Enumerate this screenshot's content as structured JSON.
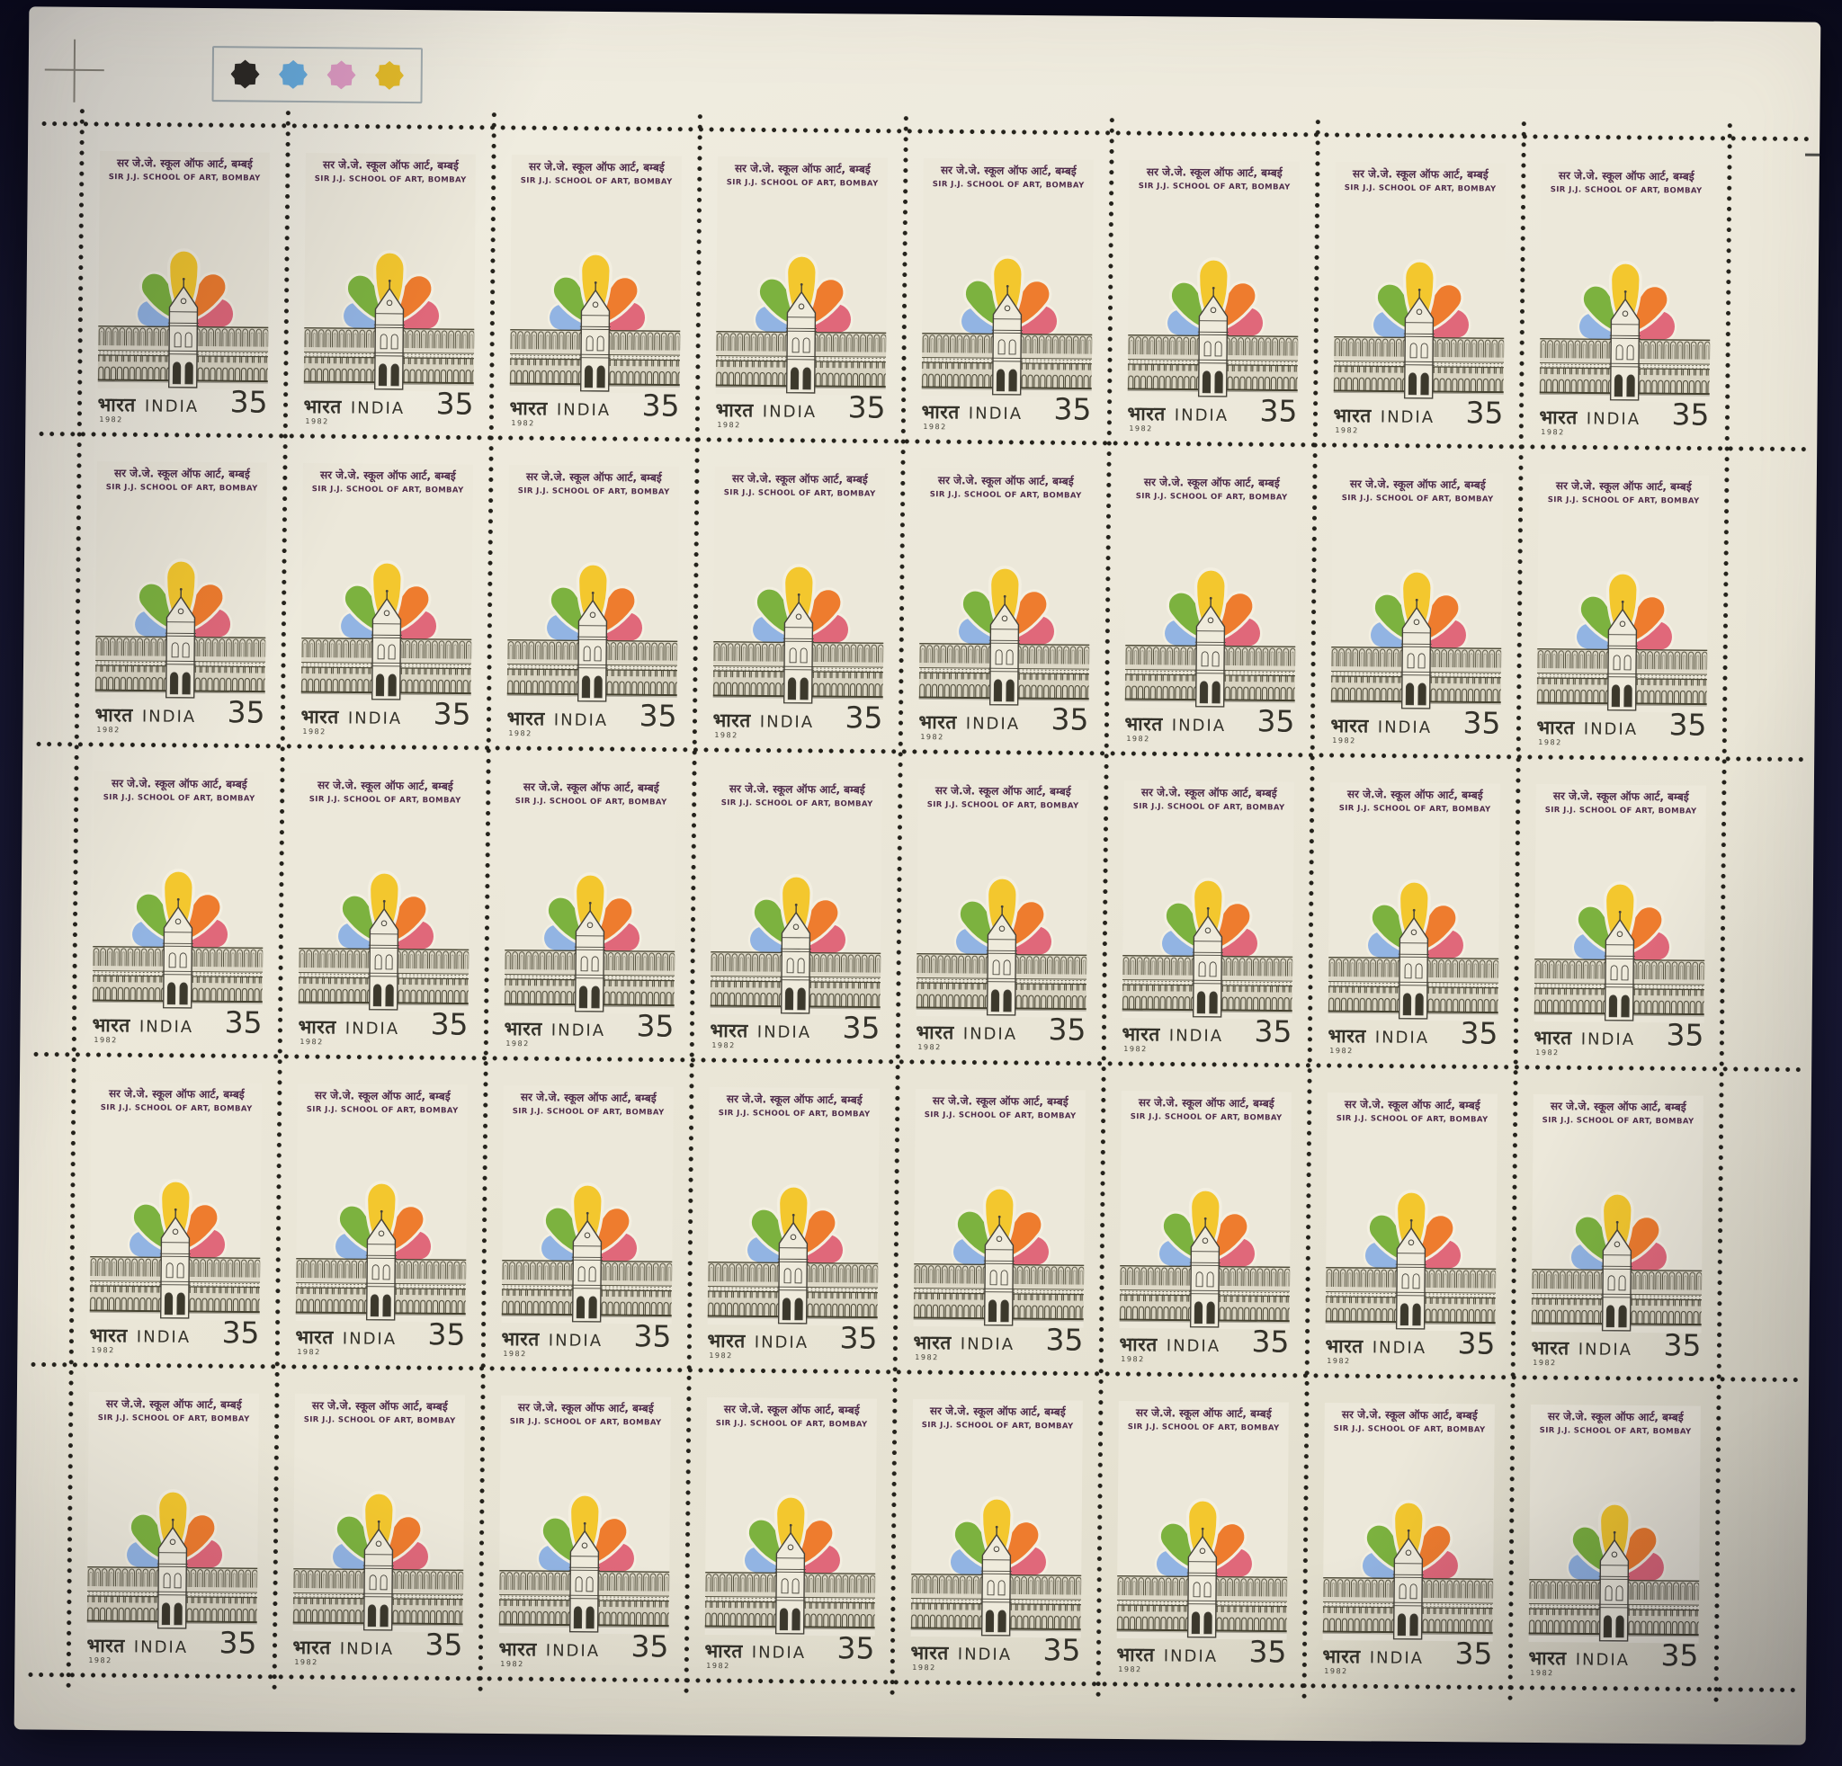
{
  "sheet": {
    "grid": {
      "rows": 5,
      "columns": 8,
      "total_stamps": 40
    },
    "registration_marks": {
      "swatches": [
        {
          "name": "black",
          "color": "#2d2a24"
        },
        {
          "name": "blue",
          "color": "#68adde"
        },
        {
          "name": "pink",
          "color": "#e09cc4"
        },
        {
          "name": "yellow",
          "color": "#e6bd29"
        }
      ]
    },
    "stamp": {
      "hindi_title": "सर जे.जे. स्कूल ऑफ आर्ट, बम्बई",
      "english_title": "SIR J.J. SCHOOL OF ART, BOMBAY",
      "country_hindi": "भारत",
      "country_english": "INDIA",
      "denomination": "35",
      "year": "1982",
      "petal_colors": {
        "blue": "#92b4e3",
        "green": "#7cb23f",
        "yellow": "#f3c72e",
        "orange": "#ee7c2e",
        "rose": "#e0687a"
      }
    }
  }
}
